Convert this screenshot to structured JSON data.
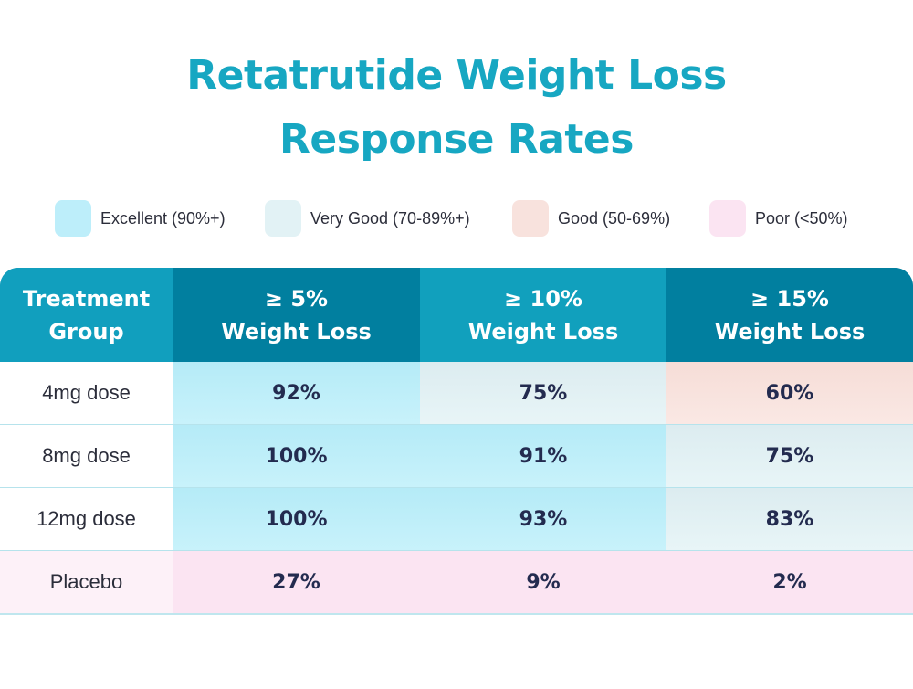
{
  "title_line1": "Retatrutide Weight Loss",
  "title_line2": "Response Rates",
  "legend": [
    {
      "label": "Excellent (90%+)",
      "color": "#bdeefa"
    },
    {
      "label": "Very Good (70-89%+)",
      "color": "#e2f2f5"
    },
    {
      "label": "Good (50-69%)",
      "color": "#f8e2dd"
    },
    {
      "label": "Poor (<50%)",
      "color": "#fbe4f2"
    }
  ],
  "colors": {
    "title": "#17a7c2",
    "header_dark": "#017f9f",
    "header_light": "#11a0bd",
    "excellent": "#bdeefa",
    "very_good": "#e2f2f5",
    "good": "#f8e2dd",
    "poor": "#fbe4f2"
  },
  "chart_data": {
    "type": "table",
    "title": "Retatrutide Weight Loss Response Rates",
    "columns": [
      [
        "Treatment",
        "Group"
      ],
      [
        "≥ 5%",
        "Weight Loss"
      ],
      [
        "≥ 10%",
        "Weight Loss"
      ],
      [
        "≥ 15%",
        "Weight Loss"
      ]
    ],
    "rows": [
      {
        "label": "4mg dose",
        "values": [
          "92%",
          "75%",
          "60%"
        ],
        "ratings": [
          "excellent",
          "very_good",
          "good"
        ]
      },
      {
        "label": "8mg dose",
        "values": [
          "100%",
          "91%",
          "75%"
        ],
        "ratings": [
          "excellent",
          "excellent",
          "very_good"
        ]
      },
      {
        "label": "12mg dose",
        "values": [
          "100%",
          "93%",
          "83%"
        ],
        "ratings": [
          "excellent",
          "excellent",
          "very_good"
        ]
      },
      {
        "label": "Placebo",
        "values": [
          "27%",
          "9%",
          "2%"
        ],
        "ratings": [
          "poor",
          "poor",
          "poor"
        ]
      }
    ]
  }
}
